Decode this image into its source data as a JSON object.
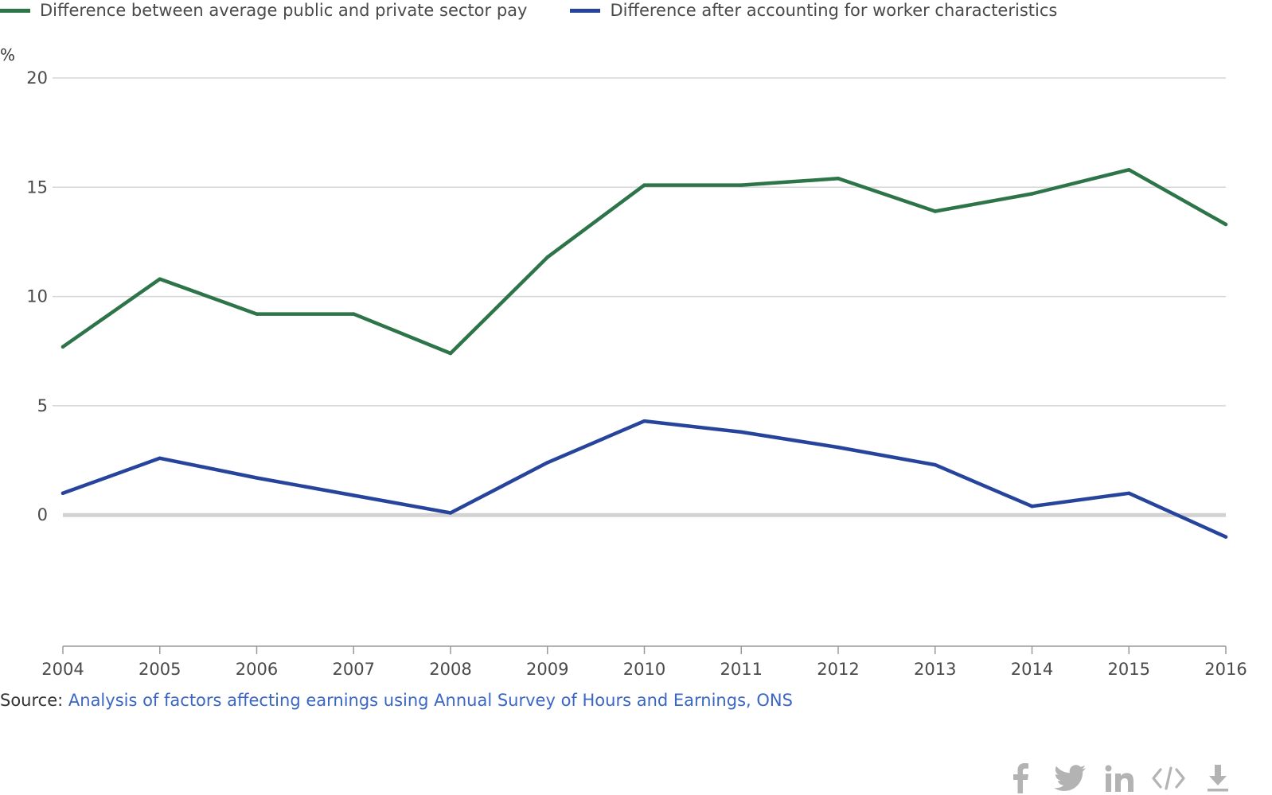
{
  "chart_data": {
    "type": "line",
    "x": [
      2004,
      2005,
      2006,
      2007,
      2008,
      2009,
      2010,
      2011,
      2012,
      2013,
      2014,
      2015,
      2016
    ],
    "series": [
      {
        "name": "Difference between average public and private sector pay",
        "color": "#2e7449",
        "values": [
          7.7,
          10.8,
          9.2,
          9.2,
          7.4,
          11.8,
          15.1,
          15.1,
          15.4,
          13.9,
          14.7,
          15.8,
          13.3
        ]
      },
      {
        "name": "Difference after accounting for worker characteristics",
        "color": "#27449c",
        "values": [
          1.0,
          2.6,
          1.7,
          0.9,
          0.1,
          2.4,
          4.3,
          3.8,
          3.1,
          2.3,
          0.4,
          1.0,
          -1.0
        ]
      }
    ],
    "ylabel": "%",
    "ylim": [
      -6,
      20
    ],
    "yticks": [
      "0",
      "5",
      "10",
      "15",
      "20"
    ],
    "xticks": [
      "2004",
      "2005",
      "2006",
      "2007",
      "2008",
      "2009",
      "2010",
      "2011",
      "2012",
      "2013",
      "2014",
      "2015",
      "2016"
    ],
    "grid": true,
    "legend_position": "top-left"
  },
  "source": {
    "prefix": "Source: ",
    "link_text": "Analysis of factors affecting earnings using Annual Survey of Hours and Earnings, ONS"
  },
  "share_icons": [
    "facebook-icon",
    "twitter-icon",
    "linkedin-icon",
    "embed-icon",
    "download-icon"
  ]
}
